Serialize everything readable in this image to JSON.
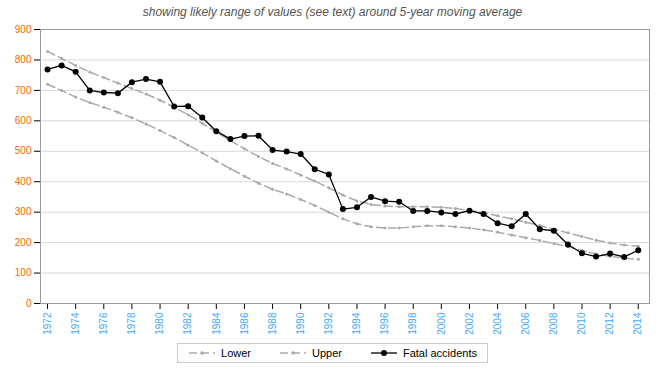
{
  "chart_data": {
    "type": "line",
    "title": "showing likely range of values (see text) around 5-year moving average",
    "x": [
      1972,
      1973,
      1974,
      1975,
      1976,
      1977,
      1978,
      1979,
      1980,
      1981,
      1982,
      1983,
      1984,
      1985,
      1986,
      1987,
      1988,
      1989,
      1990,
      1991,
      1992,
      1993,
      1994,
      1995,
      1996,
      1997,
      1998,
      1999,
      2000,
      2001,
      2002,
      2003,
      2004,
      2005,
      2006,
      2007,
      2008,
      2009,
      2010,
      2011,
      2012,
      2013,
      2014
    ],
    "series": [
      {
        "name": "Lower",
        "color": "#aaaaaa",
        "line_style": "dashed",
        "marker": "dot",
        "values": [
          720,
          700,
          678,
          660,
          645,
          628,
          610,
          590,
          568,
          545,
          520,
          495,
          468,
          443,
          418,
          395,
          375,
          360,
          342,
          322,
          300,
          278,
          262,
          252,
          248,
          248,
          252,
          255,
          255,
          252,
          248,
          242,
          234,
          225,
          216,
          207,
          197,
          186,
          174,
          163,
          155,
          149,
          145
        ]
      },
      {
        "name": "Upper",
        "color": "#aaaaaa",
        "line_style": "dashed",
        "marker": "dot",
        "values": [
          828,
          805,
          782,
          760,
          742,
          724,
          706,
          688,
          668,
          645,
          620,
          592,
          563,
          535,
          508,
          483,
          460,
          442,
          422,
          402,
          380,
          356,
          337,
          325,
          320,
          318,
          318,
          318,
          316,
          312,
          306,
          298,
          288,
          278,
          267,
          256,
          244,
          232,
          220,
          208,
          199,
          192,
          188
        ]
      },
      {
        "name": "Fatal accidents",
        "color": "#000000",
        "line_style": "solid",
        "marker": "circle",
        "values": [
          769,
          782,
          761,
          700,
          693,
          691,
          727,
          737,
          728,
          647,
          648,
          611,
          566,
          540,
          550,
          551,
          504,
          499,
          491,
          441,
          424,
          310,
          316,
          350,
          336,
          334,
          304,
          304,
          299,
          294,
          305,
          294,
          264,
          254,
          294,
          244,
          239,
          194,
          165,
          154,
          164,
          153,
          175
        ]
      }
    ],
    "xlim": [
      1971.5,
      2014.8
    ],
    "xticks": [
      1972,
      1974,
      1976,
      1978,
      1980,
      1982,
      1984,
      1986,
      1988,
      1990,
      1992,
      1994,
      1996,
      1998,
      2000,
      2002,
      2004,
      2006,
      2008,
      2010,
      2012,
      2014
    ],
    "ylim": [
      0,
      900
    ],
    "yticks": [
      0,
      100,
      200,
      300,
      400,
      500,
      600,
      700,
      800,
      900
    ],
    "grid": true,
    "legend": "bottom"
  }
}
